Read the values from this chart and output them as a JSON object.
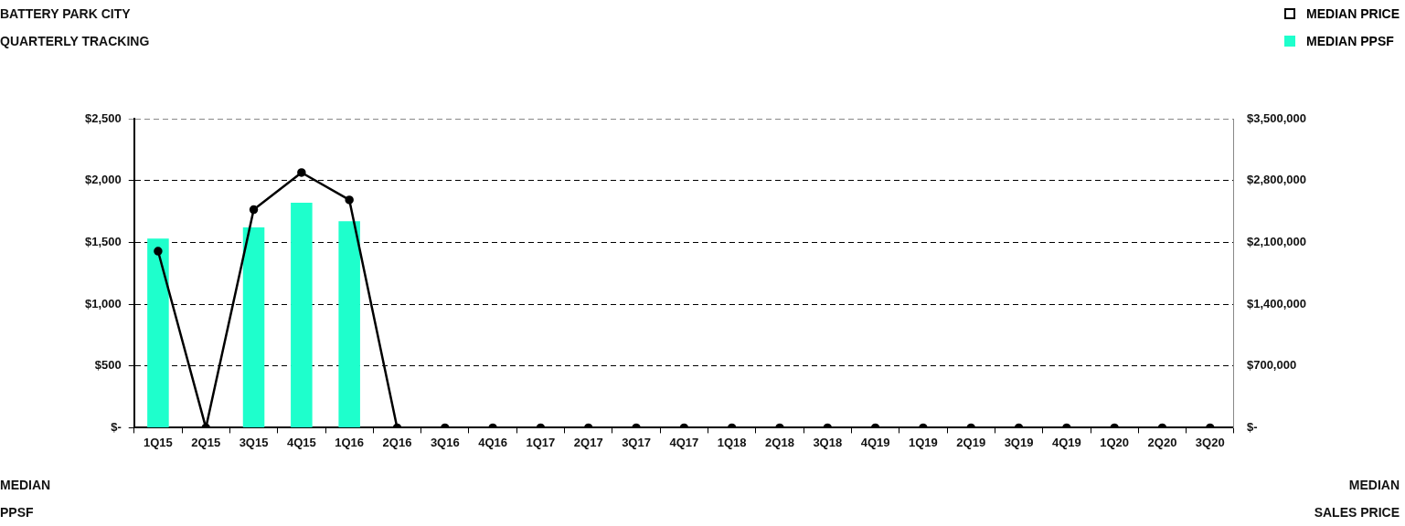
{
  "chart_data": {
    "type": "bar",
    "title": "BATTERY PARK CITY",
    "subtitle": "QUARTERLY TRACKING",
    "ylabel": "MEDIAN PPSF",
    "y2label": "MEDIAN SALES PRICE",
    "categories": [
      "1Q15",
      "2Q15",
      "3Q15",
      "4Q15",
      "1Q16",
      "2Q16",
      "3Q16",
      "4Q16",
      "1Q17",
      "2Q17",
      "3Q17",
      "4Q17",
      "1Q18",
      "2Q18",
      "3Q18",
      "4Q19",
      "1Q19",
      "2Q19",
      "3Q19",
      "4Q19",
      "1Q20",
      "2Q20",
      "3Q20"
    ],
    "series": [
      {
        "name": "MEDIAN PRICE",
        "type": "line",
        "axis": "y2",
        "color": "#000000",
        "values": [
          2000000,
          0,
          2470000,
          2890000,
          2580000,
          0,
          0,
          0,
          0,
          0,
          0,
          0,
          0,
          0,
          0,
          0,
          0,
          0,
          0,
          0,
          0,
          0,
          0
        ]
      },
      {
        "name": "MEDIAN PPSF",
        "color": "#1effcc",
        "values": [
          1530,
          0,
          1620,
          1820,
          1670,
          0,
          0,
          0,
          0,
          0,
          0,
          0,
          0,
          0,
          0,
          0,
          0,
          0,
          0,
          0,
          0,
          0,
          0
        ]
      }
    ],
    "ylim": [
      0,
      2500
    ],
    "yticks": [
      {
        "value": 0,
        "label": "$-"
      },
      {
        "value": 500,
        "label": "$500"
      },
      {
        "value": 1000,
        "label": "$1,000"
      },
      {
        "value": 1500,
        "label": "$1,500"
      },
      {
        "value": 2000,
        "label": "$2,000"
      },
      {
        "value": 2500,
        "label": "$2,500"
      }
    ],
    "y2lim": [
      0,
      3500000
    ],
    "y2ticks": [
      {
        "value": 0,
        "label": "$-"
      },
      {
        "value": 700000,
        "label": "$700,000"
      },
      {
        "value": 1400000,
        "label": "$1,400,000"
      },
      {
        "value": 2100000,
        "label": "$2,100,000"
      },
      {
        "value": 2800000,
        "label": "$2,800,000"
      },
      {
        "value": 3500000,
        "label": "$3,500,000"
      }
    ],
    "grid": "y",
    "legend": "top right",
    "marker": "circle",
    "line_style": "solid"
  }
}
